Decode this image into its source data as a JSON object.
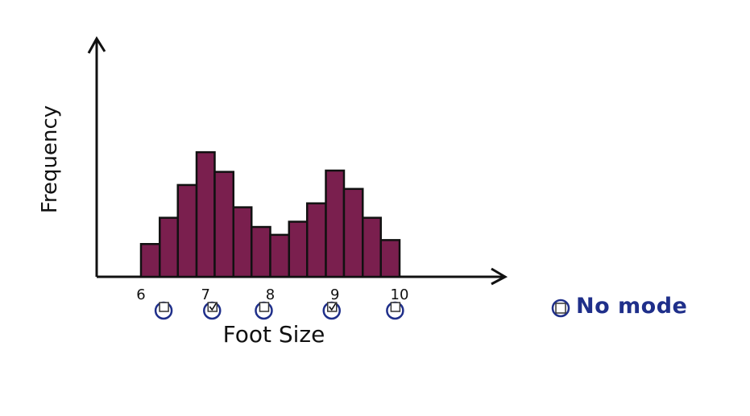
{
  "chart_data": {
    "type": "bar",
    "xlabel": "Foot Size",
    "ylabel": "Frequency",
    "xlim": [
      6,
      10
    ],
    "bar_width": 0.2857,
    "x_ticks": [
      "6",
      "7",
      "8",
      "9",
      "10"
    ],
    "bins_start": [
      6.0,
      6.29,
      6.57,
      6.86,
      7.14,
      7.43,
      7.71,
      8.0,
      8.29,
      8.57,
      8.86,
      9.14,
      9.43,
      9.71
    ],
    "values": [
      2.5,
      4.5,
      7.0,
      9.5,
      8.0,
      5.3,
      3.8,
      3.2,
      4.2,
      5.6,
      8.1,
      6.7,
      4.5,
      2.8
    ],
    "bar_color": "#7a1f4e"
  },
  "options": {
    "mode_checkboxes": [
      {
        "x": 6.35,
        "checked": false
      },
      {
        "x": 7.1,
        "checked": true
      },
      {
        "x": 7.9,
        "checked": false
      },
      {
        "x": 8.95,
        "checked": true
      },
      {
        "x": 9.93,
        "checked": false
      }
    ],
    "no_mode_label": "No mode",
    "no_mode_checked": false,
    "accent_color": "#1f2f8a"
  }
}
